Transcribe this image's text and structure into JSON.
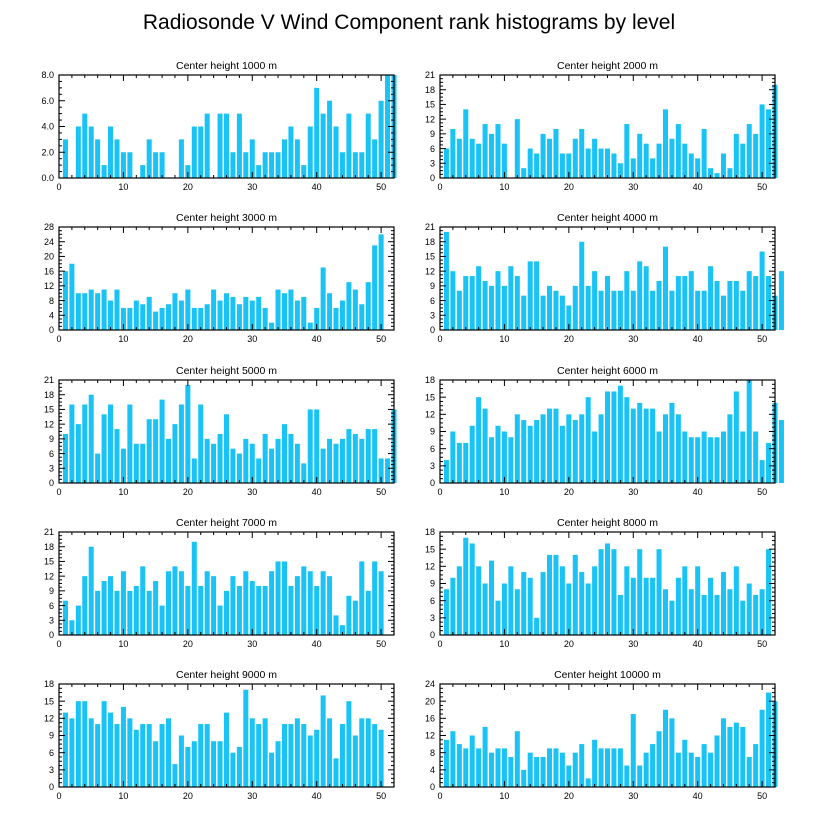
{
  "chart_data": {
    "title": "Radiosonde V Wind Component rank histograms by level",
    "type": "bar",
    "x_ticks": [
      0,
      10,
      20,
      30,
      40,
      50
    ],
    "xlim": [
      0,
      52
    ],
    "bar_color": "#19c3f5",
    "panels": [
      {
        "title": "Center height 1000 m",
        "ylim": [
          0,
          8
        ],
        "y_ticks": [
          "0.0",
          "2.0",
          "4.0",
          "6.0",
          "8.0"
        ],
        "values": [
          3,
          0,
          4,
          5,
          4,
          3,
          1,
          4,
          3,
          2,
          2,
          0,
          1,
          3,
          2,
          2,
          0,
          0,
          3,
          1,
          4,
          4,
          5,
          0,
          5,
          5,
          2,
          5,
          2,
          3,
          1,
          2,
          2,
          2,
          3,
          4,
          3,
          1,
          4,
          7,
          5,
          6,
          4,
          2,
          5,
          2,
          2,
          5,
          3,
          6,
          8,
          8
        ]
      },
      {
        "title": "Center height 2000 m",
        "ylim": [
          0,
          21
        ],
        "y_ticks": [
          "0",
          "3",
          "6",
          "9",
          "12",
          "15",
          "18",
          "21"
        ],
        "values": [
          6,
          10,
          8,
          14,
          8,
          7,
          11,
          9,
          11,
          7,
          0,
          12,
          2,
          6,
          5,
          9,
          8,
          10,
          5,
          5,
          8,
          10,
          6,
          8,
          6,
          6,
          5,
          3,
          11,
          4,
          9,
          7,
          4,
          7,
          14,
          8,
          11,
          7,
          5,
          4,
          10,
          2,
          1,
          5,
          2,
          9,
          7,
          11,
          9,
          15,
          14,
          19
        ]
      },
      {
        "title": "Center height 3000 m",
        "ylim": [
          0,
          28
        ],
        "y_ticks": [
          "0",
          "4",
          "8",
          "12",
          "16",
          "20",
          "24",
          "28"
        ],
        "values": [
          16,
          18,
          10,
          10,
          11,
          10,
          11,
          8,
          11,
          6,
          6,
          8,
          7,
          9,
          5,
          6,
          7,
          10,
          8,
          11,
          6,
          6,
          7,
          11,
          8,
          10,
          9,
          7,
          9,
          8,
          9,
          6,
          2,
          11,
          10,
          11,
          8,
          9,
          2,
          6,
          17,
          10,
          6,
          8,
          13,
          11,
          7,
          13,
          23,
          26
        ]
      },
      {
        "title": "Center height 4000 m",
        "ylim": [
          0,
          21
        ],
        "y_ticks": [
          "0",
          "3",
          "6",
          "9",
          "12",
          "15",
          "18",
          "21"
        ],
        "values": [
          20,
          12,
          8,
          11,
          11,
          13,
          10,
          9,
          12,
          9,
          13,
          11,
          7,
          14,
          14,
          7,
          9,
          8,
          7,
          5,
          9,
          18,
          9,
          12,
          8,
          11,
          8,
          8,
          12,
          8,
          14,
          13,
          8,
          10,
          17,
          8,
          11,
          11,
          12,
          8,
          8,
          13,
          10,
          7,
          10,
          10,
          8,
          12,
          11,
          16,
          11,
          7,
          12
        ]
      },
      {
        "title": "Center height 5000 m",
        "ylim": [
          0,
          21
        ],
        "y_ticks": [
          "0",
          "3",
          "6",
          "9",
          "12",
          "15",
          "18",
          "21"
        ],
        "values": [
          10,
          16,
          12,
          16,
          18,
          6,
          14,
          16,
          11,
          7,
          16,
          8,
          8,
          13,
          13,
          17,
          9,
          12,
          16,
          20,
          5,
          16,
          9,
          8,
          10,
          14,
          7,
          6,
          9,
          8,
          5,
          10,
          7,
          9,
          12,
          10,
          8,
          4,
          15,
          15,
          7,
          9,
          8,
          9,
          11,
          10,
          9,
          11,
          11,
          5,
          5,
          15
        ]
      },
      {
        "title": "Center height 6000 m",
        "ylim": [
          0,
          18
        ],
        "y_ticks": [
          "0",
          "3",
          "6",
          "9",
          "12",
          "15",
          "18"
        ],
        "values": [
          4,
          9,
          7,
          7,
          10,
          15,
          13,
          8,
          10,
          9,
          8,
          12,
          11,
          10,
          11,
          12,
          13,
          13,
          10,
          12,
          11,
          12,
          15,
          9,
          12,
          16,
          16,
          17,
          15,
          13,
          14,
          13,
          13,
          9,
          12,
          14,
          12,
          9,
          8,
          8,
          9,
          8,
          8,
          9,
          12,
          16,
          9,
          18,
          9,
          4,
          7,
          14,
          11
        ]
      },
      {
        "title": "Center height 7000 m",
        "ylim": [
          0,
          21
        ],
        "y_ticks": [
          "0",
          "3",
          "6",
          "9",
          "12",
          "15",
          "18",
          "21"
        ],
        "values": [
          7,
          3,
          6,
          12,
          18,
          9,
          11,
          12,
          9,
          13,
          9,
          10,
          14,
          9,
          11,
          6,
          13,
          14,
          13,
          10,
          19,
          10,
          13,
          12,
          6,
          9,
          12,
          10,
          13,
          11,
          10,
          10,
          13,
          15,
          15,
          10,
          12,
          14,
          13,
          10,
          13,
          12,
          4,
          2,
          8,
          7,
          15,
          9,
          15,
          13
        ]
      },
      {
        "title": "Center height 8000 m",
        "ylim": [
          0,
          18
        ],
        "y_ticks": [
          "0",
          "3",
          "6",
          "9",
          "12",
          "15",
          "18"
        ],
        "values": [
          8,
          10,
          12,
          17,
          16,
          12,
          9,
          13,
          6,
          9,
          12,
          8,
          11,
          10,
          3,
          11,
          14,
          14,
          12,
          9,
          14,
          11,
          9,
          12,
          15,
          16,
          15,
          7,
          12,
          10,
          15,
          10,
          10,
          15,
          8,
          6,
          10,
          12,
          8,
          12,
          7,
          10,
          7,
          11,
          8,
          12,
          6,
          9,
          7,
          8,
          15
        ]
      },
      {
        "title": "Center height 9000 m",
        "ylim": [
          0,
          18
        ],
        "y_ticks": [
          "0",
          "3",
          "6",
          "9",
          "12",
          "15",
          "18"
        ],
        "values": [
          13,
          12,
          15,
          15,
          12,
          11,
          15,
          13,
          11,
          14,
          12,
          10,
          11,
          11,
          8,
          11,
          12,
          4,
          9,
          7,
          8,
          11,
          11,
          8,
          8,
          13,
          6,
          7,
          17,
          12,
          11,
          12,
          6,
          8,
          11,
          11,
          12,
          11,
          9,
          10,
          16,
          12,
          5,
          11,
          15,
          9,
          12,
          12,
          11,
          10
        ]
      },
      {
        "title": "Center height 10000 m",
        "ylim": [
          0,
          24
        ],
        "y_ticks": [
          "0",
          "4",
          "8",
          "12",
          "16",
          "20",
          "24"
        ],
        "values": [
          11,
          13,
          10,
          9,
          12,
          9,
          14,
          8,
          9,
          9,
          7,
          13,
          4,
          8,
          7,
          7,
          9,
          9,
          8,
          5,
          8,
          10,
          2,
          11,
          9,
          9,
          9,
          9,
          5,
          17,
          5,
          8,
          10,
          13,
          18,
          16,
          8,
          11,
          8,
          7,
          10,
          8,
          12,
          16,
          14,
          15,
          14,
          7,
          10,
          18,
          22,
          20
        ]
      }
    ]
  }
}
